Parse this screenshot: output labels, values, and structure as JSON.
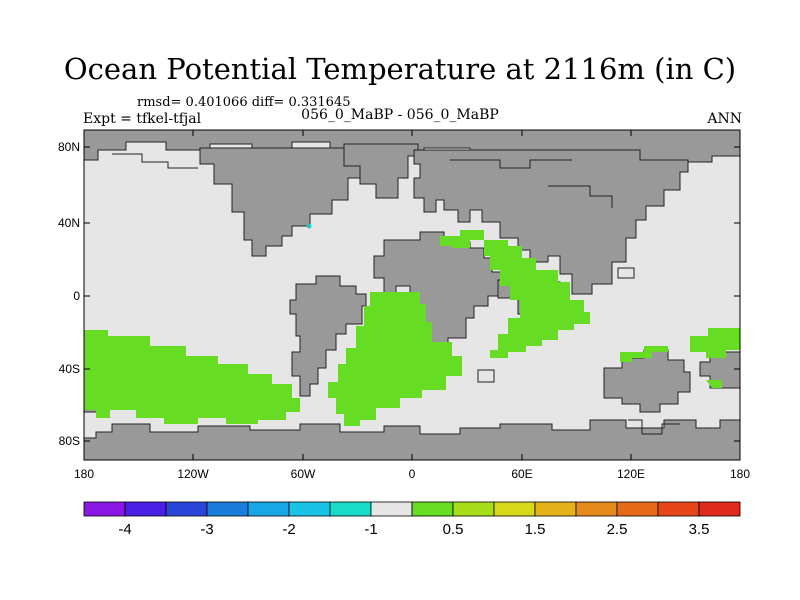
{
  "title": "Ocean Potential Temperature at 2116m (in C)",
  "stats": "rmsd= 0.401066 diff= 0.331645",
  "case": "056_0_MaBP - 056_0_MaBP",
  "expt": "Expt = tfkel-tfjal",
  "season": "ANN",
  "colors": {
    "land": "#999999",
    "ocean_neutral": "#e6e6e6",
    "positive_anomaly": "#66dd22",
    "cyan_point": "#22ccbb",
    "coast": "#222222"
  },
  "map": {
    "lat_ticks": [
      "80N",
      "40N",
      "0",
      "40S",
      "80S"
    ],
    "lon_ticks": [
      "180",
      "120W",
      "60W",
      "0",
      "60E",
      "120E",
      "180"
    ]
  },
  "colorbar": {
    "colors": [
      "#8a17e6",
      "#4a1fe6",
      "#2a46d8",
      "#1a7ddc",
      "#18a7e6",
      "#18c3e6",
      "#19dcc8",
      "#e6e6e6",
      "#66dd22",
      "#a8dd1a",
      "#d8d81a",
      "#e6b21a",
      "#e68b1a",
      "#e66a1a",
      "#e6461a",
      "#dd2a1a"
    ],
    "labels": [
      "-4",
      "-3",
      "-2",
      "-1",
      "0.5",
      "1.5",
      "2.5",
      "3.5"
    ]
  }
}
